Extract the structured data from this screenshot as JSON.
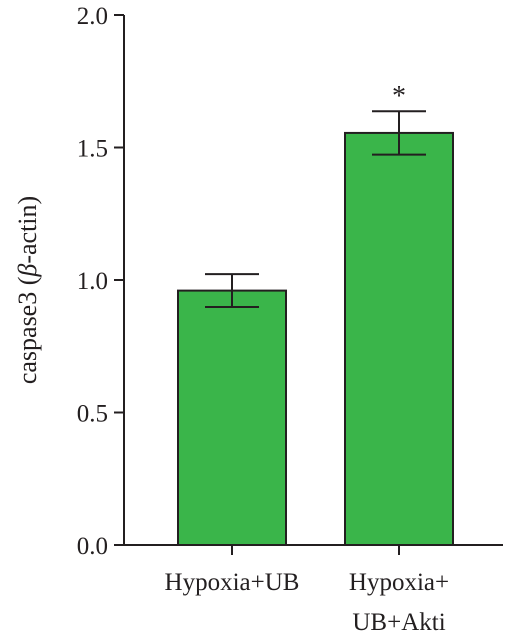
{
  "chart_data": {
    "type": "bar",
    "title": "",
    "xlabel": "",
    "ylabel": "caspase3 (β-actin)",
    "ylim": [
      0,
      2.0
    ],
    "yticks": [
      "0.0",
      "0.5",
      "1.0",
      "1.5",
      "2.0"
    ],
    "grid": false,
    "legend": "none",
    "bar_color": "#3ab54a",
    "bar_edge_color": "#231f20",
    "categories": [
      {
        "lines": [
          "Hypoxia+UB"
        ]
      },
      {
        "lines": [
          "Hypoxia+",
          "UB+Akti"
        ]
      }
    ],
    "series": [
      {
        "values": [
          0.96,
          1.555
        ],
        "errors": [
          0.062,
          0.082
        ],
        "annotations": [
          "",
          "*"
        ]
      }
    ]
  }
}
